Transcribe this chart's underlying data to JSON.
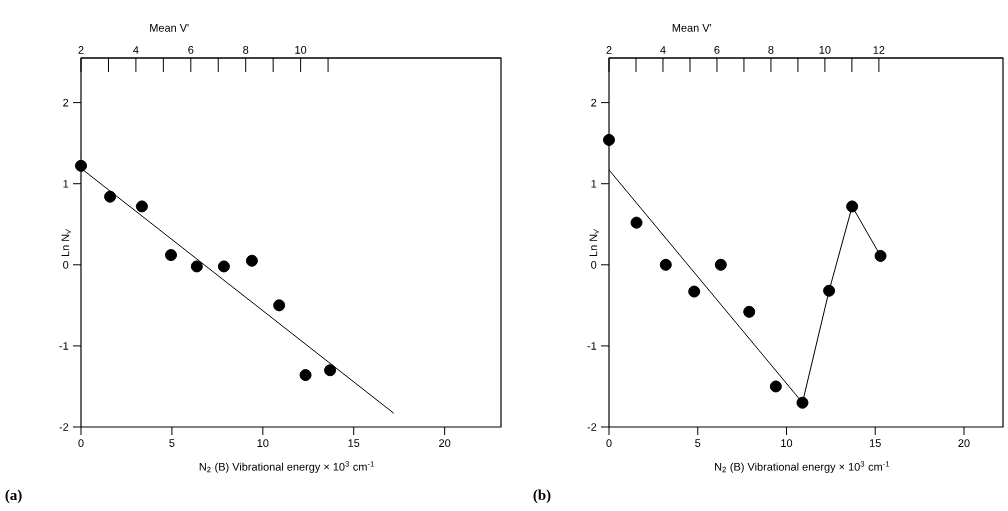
{
  "chart_data": [
    {
      "type": "scatter",
      "xlabel": "N$_{2}$ (B)   Vibrational energy × 10$^{3}$ cm$^{-1}$",
      "ylabel": "Ln N$_{v'}$",
      "x2label": "Mean V'",
      "xlim": [
        0,
        23.1
      ],
      "ylim": [
        -2,
        2.55
      ],
      "x2lim": [
        2,
        17.3
      ],
      "xticks": [
        0,
        5,
        10,
        15,
        20
      ],
      "yticks": [
        -2,
        -1,
        0,
        1,
        2
      ],
      "x2ticks": [
        2,
        {
          "value": 3,
          "label": null
        },
        4,
        {
          "value": 5,
          "label": null
        },
        6,
        {
          "value": 7,
          "label": null
        },
        8,
        {
          "value": 9,
          "label": null
        },
        10,
        {
          "value": 11,
          "label": null
        }
      ],
      "annotations": [
        "(a)"
      ],
      "series": [
        {
          "type": "scatter",
          "marker": "circle",
          "color": "#000000",
          "x": [
            0,
            1.6,
            3.35,
            4.95,
            6.37,
            7.86,
            9.4,
            10.9,
            12.35,
            13.7
          ],
          "values": [
            1.22,
            0.84,
            0.72,
            0.12,
            -0.02,
            -0.02,
            0.05,
            -0.5,
            -1.36,
            -1.3
          ]
        },
        {
          "type": "line",
          "marker": "none",
          "line_style": "solid",
          "color": "#000000",
          "x": [
            0,
            17.2
          ],
          "values": [
            1.19,
            -1.83
          ]
        }
      ]
    },
    {
      "type": "scatter",
      "xlabel": "N$_{2}$ (B)   Vibrational energy × 10$^{3}$ cm$^{-1}$",
      "ylabel": "Ln N$_{v'}$",
      "x2label": "Mean V'",
      "xlim": [
        0,
        22.2
      ],
      "ylim": [
        -2,
        2.55
      ],
      "x2lim": [
        2,
        16.6
      ],
      "xticks": [
        0,
        5,
        10,
        15,
        20
      ],
      "yticks": [
        -2,
        -1,
        0,
        1,
        2
      ],
      "x2ticks": [
        2,
        {
          "value": 3,
          "label": null
        },
        4,
        {
          "value": 5,
          "label": null
        },
        6,
        {
          "value": 7,
          "label": null
        },
        8,
        {
          "value": 9,
          "label": null
        },
        10,
        {
          "value": 11,
          "label": null
        },
        12
      ],
      "annotations": [
        "(b)"
      ],
      "series": [
        {
          "type": "scatter",
          "marker": "circle",
          "color": "#000000",
          "x": [
            0,
            1.55,
            3.2,
            4.8,
            6.3,
            7.9,
            9.4,
            10.9,
            12.4,
            13.7,
            15.3
          ],
          "values": [
            1.54,
            0.52,
            0,
            -0.33,
            0,
            -0.58,
            -1.5,
            -1.7,
            -0.32,
            0.72,
            0.11
          ]
        },
        {
          "type": "line",
          "marker": "none",
          "line_style": "solid",
          "color": "#000000",
          "x": [
            0,
            10.9
          ],
          "values": [
            1.17,
            -1.7
          ]
        },
        {
          "type": "line",
          "marker": "none",
          "line_style": "solid",
          "color": "#000000",
          "x": [
            10.9,
            12.4,
            13.7,
            15.3
          ],
          "values": [
            -1.7,
            -0.32,
            0.72,
            0.11
          ]
        }
      ]
    }
  ]
}
